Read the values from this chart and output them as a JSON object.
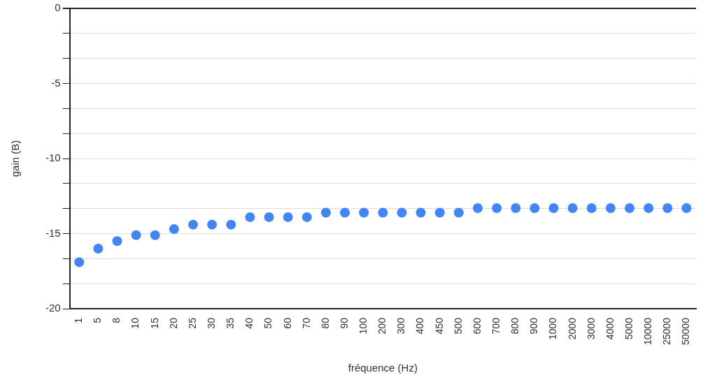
{
  "chart_data": {
    "type": "scatter",
    "xlabel": "fréquence (Hz)",
    "ylabel": "gain (B)",
    "categories": [
      "1",
      "5",
      "8",
      "10",
      "15",
      "20",
      "25",
      "30",
      "35",
      "40",
      "50",
      "60",
      "70",
      "80",
      "90",
      "100",
      "200",
      "300",
      "400",
      "450",
      "500",
      "600",
      "700",
      "800",
      "900",
      "1000",
      "2000",
      "3000",
      "4000",
      "5000",
      "10000",
      "25000",
      "50000"
    ],
    "series": [
      {
        "color": "#4285f4",
        "values": [
          -16.9,
          -16.0,
          -15.5,
          -15.1,
          -15.1,
          -14.7,
          -14.4,
          -14.4,
          -14.4,
          -13.9,
          -13.9,
          -13.9,
          -13.9,
          -13.6,
          -13.6,
          -13.6,
          -13.6,
          -13.6,
          -13.6,
          -13.6,
          -13.6,
          -13.3,
          -13.3,
          -13.3,
          -13.3,
          -13.3,
          -13.3,
          -13.3,
          -13.3,
          -13.3,
          -13.3,
          -13.3,
          -13.3
        ]
      }
    ],
    "ylim": [
      -20,
      0
    ],
    "yticks": [
      -20,
      {
        "value": -18.33,
        "label": null
      },
      {
        "value": -16.67,
        "label": null
      },
      -15,
      {
        "value": -13.33,
        "label": null
      },
      {
        "value": -11.67,
        "label": null
      },
      -10,
      {
        "value": -8.33,
        "label": null
      },
      {
        "value": -6.67,
        "label": null
      },
      -5,
      {
        "value": -3.33,
        "label": null
      },
      {
        "value": -1.67,
        "label": null
      },
      0
    ],
    "grid": "y",
    "legend": false,
    "marker": "circle"
  }
}
